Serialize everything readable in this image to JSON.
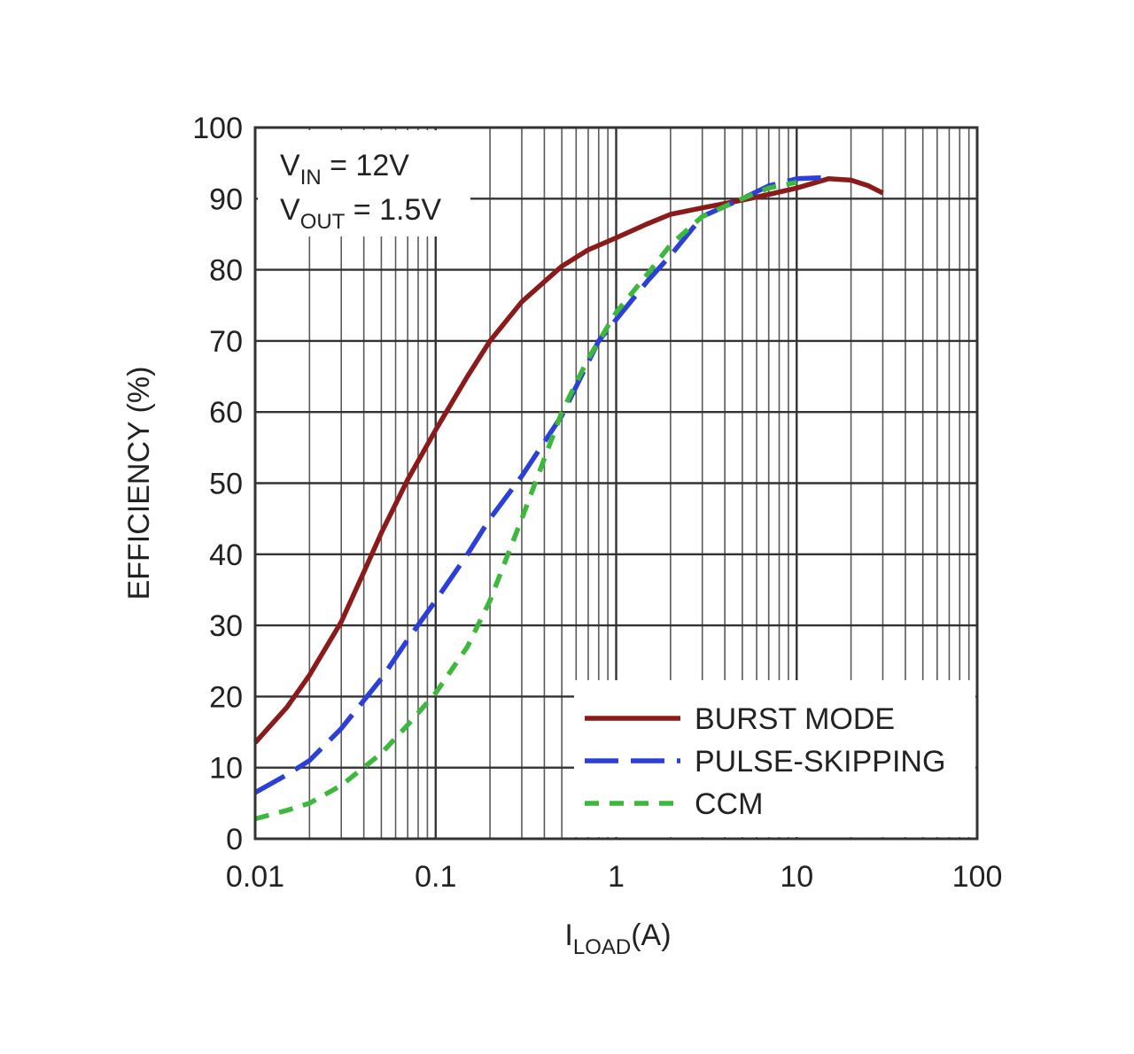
{
  "chart_data": {
    "type": "line",
    "xlabel": {
      "main": "I",
      "sub": "LOAD",
      "unit": "(A)"
    },
    "ylabel": "EFFICIENCY (%)",
    "xscale": "log",
    "xlim": [
      0.01,
      100
    ],
    "ylim": [
      0,
      100
    ],
    "xticks": [
      {
        "value": 0.01,
        "label": "0.01"
      },
      {
        "value": 0.1,
        "label": "0.1"
      },
      {
        "value": 1,
        "label": "1"
      },
      {
        "value": 10,
        "label": "10"
      },
      {
        "value": 100,
        "label": "100"
      }
    ],
    "yticks": [
      0,
      10,
      20,
      30,
      40,
      50,
      60,
      70,
      80,
      90,
      100
    ],
    "grid": true,
    "legend_position": "bottom-right",
    "annotations": [
      {
        "main": "V",
        "sub": "IN",
        "rest": " = 12V"
      },
      {
        "main": "V",
        "sub": "OUT",
        "rest": " = 1.5V"
      }
    ],
    "series": [
      {
        "name": "BURST MODE",
        "color": "#8b1a1a",
        "style": "solid",
        "points": [
          [
            0.01,
            13.5
          ],
          [
            0.015,
            18.5
          ],
          [
            0.02,
            23
          ],
          [
            0.03,
            30.5
          ],
          [
            0.04,
            37.5
          ],
          [
            0.05,
            43
          ],
          [
            0.07,
            50.5
          ],
          [
            0.1,
            57.5
          ],
          [
            0.15,
            65
          ],
          [
            0.2,
            70
          ],
          [
            0.3,
            75.5
          ],
          [
            0.5,
            80.5
          ],
          [
            0.7,
            82.8
          ],
          [
            1,
            84.5
          ],
          [
            1.5,
            86.5
          ],
          [
            2,
            87.8
          ],
          [
            3,
            88.7
          ],
          [
            5,
            89.8
          ],
          [
            7,
            90.6
          ],
          [
            10,
            91.5
          ],
          [
            15,
            92.8
          ],
          [
            20,
            92.6
          ],
          [
            25,
            91.8
          ],
          [
            30,
            90.8
          ]
        ]
      },
      {
        "name": "PULSE-SKIPPING",
        "color": "#2c3fd6",
        "style": "dashed",
        "points": [
          [
            0.01,
            6.5
          ],
          [
            0.015,
            9
          ],
          [
            0.02,
            11
          ],
          [
            0.03,
            15.5
          ],
          [
            0.05,
            22.5
          ],
          [
            0.07,
            28
          ],
          [
            0.1,
            33.5
          ],
          [
            0.15,
            40
          ],
          [
            0.2,
            45
          ],
          [
            0.3,
            51
          ],
          [
            0.5,
            59.5
          ],
          [
            0.7,
            67
          ],
          [
            0.8,
            70
          ],
          [
            1,
            73
          ],
          [
            1.5,
            78.5
          ],
          [
            2,
            82
          ],
          [
            3,
            87.5
          ],
          [
            5,
            90
          ],
          [
            7,
            91.8
          ],
          [
            10,
            92.8
          ],
          [
            15,
            93
          ]
        ]
      },
      {
        "name": "CCM",
        "color": "#3cb83c",
        "style": "dotted",
        "points": [
          [
            0.01,
            2.8
          ],
          [
            0.015,
            4
          ],
          [
            0.02,
            5
          ],
          [
            0.03,
            7.5
          ],
          [
            0.05,
            12
          ],
          [
            0.07,
            16
          ],
          [
            0.1,
            20.5
          ],
          [
            0.15,
            27
          ],
          [
            0.2,
            33.5
          ],
          [
            0.3,
            45
          ],
          [
            0.5,
            60
          ],
          [
            0.7,
            67.5
          ],
          [
            1,
            74
          ],
          [
            1.5,
            79.5
          ],
          [
            2,
            83.5
          ],
          [
            3,
            87.5
          ],
          [
            5,
            90
          ],
          [
            7,
            91.5
          ],
          [
            10,
            92.3
          ]
        ]
      }
    ]
  }
}
